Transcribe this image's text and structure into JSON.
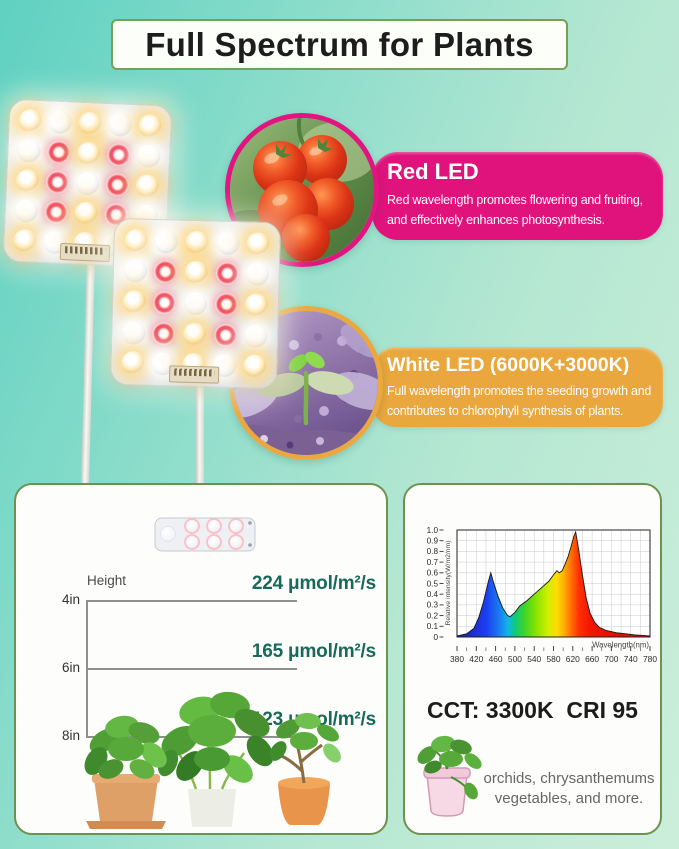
{
  "title": {
    "text": "Full Spectrum for Plants"
  },
  "background": {
    "teal": "#5fd1c1",
    "mint": "#cbeeda"
  },
  "features": [
    {
      "name": "red-led",
      "title": "Red LED",
      "lines": [
        "Red wavelength promotes flowering and fruiting,",
        "and effectively enhances photosynthesis."
      ],
      "box_color": "#e0137c"
    },
    {
      "name": "white-led",
      "title": "White LED (6000K+3000K)",
      "lines": [
        "Full wavelength promotes the seeding growth and",
        "contributes to chlorophyll synthesis of plants."
      ],
      "box_color": "#e9a73d"
    }
  ],
  "led_panels": {
    "pattern": [
      "ywywy",
      "wryrw",
      "yrwry",
      "wryrw",
      "ywywy"
    ],
    "legend": {
      "w": "white-led",
      "y": "warm-white-led",
      "r": "red-led"
    }
  },
  "height_chart": {
    "label": "Height",
    "value_color": "#17695a",
    "rows": [
      {
        "height": "4in",
        "value": "224 μmol/m²/s"
      },
      {
        "height": "6in",
        "value": "165 μmol/m²/s"
      },
      {
        "height": "8in",
        "value": "123 μmol/m²/s"
      }
    ]
  },
  "chart_data": {
    "type": "area",
    "title": "",
    "xlabel": "Wavelength(nm)",
    "ylabel": "Relative intensity(W/m2/nm)",
    "xlim": [
      380,
      780
    ],
    "ylim": [
      0,
      1.0
    ],
    "xticks": [
      380,
      420,
      460,
      500,
      540,
      580,
      620,
      660,
      700,
      740,
      780
    ],
    "yticks": [
      "0",
      "0.1",
      "0.2",
      "0.3",
      "0.4",
      "0.5",
      "0.6",
      "0.7",
      "0.8",
      "0.9",
      "1.0"
    ],
    "grid": true,
    "legend_position": "none",
    "points": [
      [
        380,
        0.01
      ],
      [
        400,
        0.03
      ],
      [
        415,
        0.08
      ],
      [
        425,
        0.18
      ],
      [
        435,
        0.33
      ],
      [
        445,
        0.52
      ],
      [
        450,
        0.6
      ],
      [
        455,
        0.52
      ],
      [
        465,
        0.38
      ],
      [
        475,
        0.27
      ],
      [
        485,
        0.2
      ],
      [
        490,
        0.19
      ],
      [
        500,
        0.23
      ],
      [
        510,
        0.29
      ],
      [
        525,
        0.34
      ],
      [
        540,
        0.4
      ],
      [
        555,
        0.46
      ],
      [
        570,
        0.52
      ],
      [
        580,
        0.58
      ],
      [
        587,
        0.62
      ],
      [
        592,
        0.6
      ],
      [
        598,
        0.62
      ],
      [
        604,
        0.68
      ],
      [
        610,
        0.75
      ],
      [
        616,
        0.84
      ],
      [
        622,
        0.94
      ],
      [
        626,
        0.98
      ],
      [
        632,
        0.82
      ],
      [
        640,
        0.58
      ],
      [
        648,
        0.36
      ],
      [
        656,
        0.22
      ],
      [
        665,
        0.14
      ],
      [
        675,
        0.09
      ],
      [
        690,
        0.06
      ],
      [
        710,
        0.04
      ],
      [
        730,
        0.03
      ],
      [
        750,
        0.02
      ],
      [
        780,
        0.01
      ]
    ],
    "gradient_stops": [
      [
        380,
        "#1b1bb0"
      ],
      [
        440,
        "#1b3df0"
      ],
      [
        465,
        "#1b74f0"
      ],
      [
        485,
        "#10b4e8"
      ],
      [
        500,
        "#0ec97c"
      ],
      [
        520,
        "#3ed428"
      ],
      [
        545,
        "#8ce400"
      ],
      [
        570,
        "#d6ee00"
      ],
      [
        588,
        "#ffd900"
      ],
      [
        603,
        "#ffaa00"
      ],
      [
        618,
        "#ff6a00"
      ],
      [
        633,
        "#ff3000"
      ],
      [
        655,
        "#f31600"
      ],
      [
        700,
        "#e60f00"
      ],
      [
        780,
        "#db0b00"
      ]
    ]
  },
  "specs": {
    "cct_cri": "CCT: 3300K  CRI 95",
    "note_lines": [
      "orchids, chrysanthemums",
      "vegetables, and more."
    ]
  }
}
